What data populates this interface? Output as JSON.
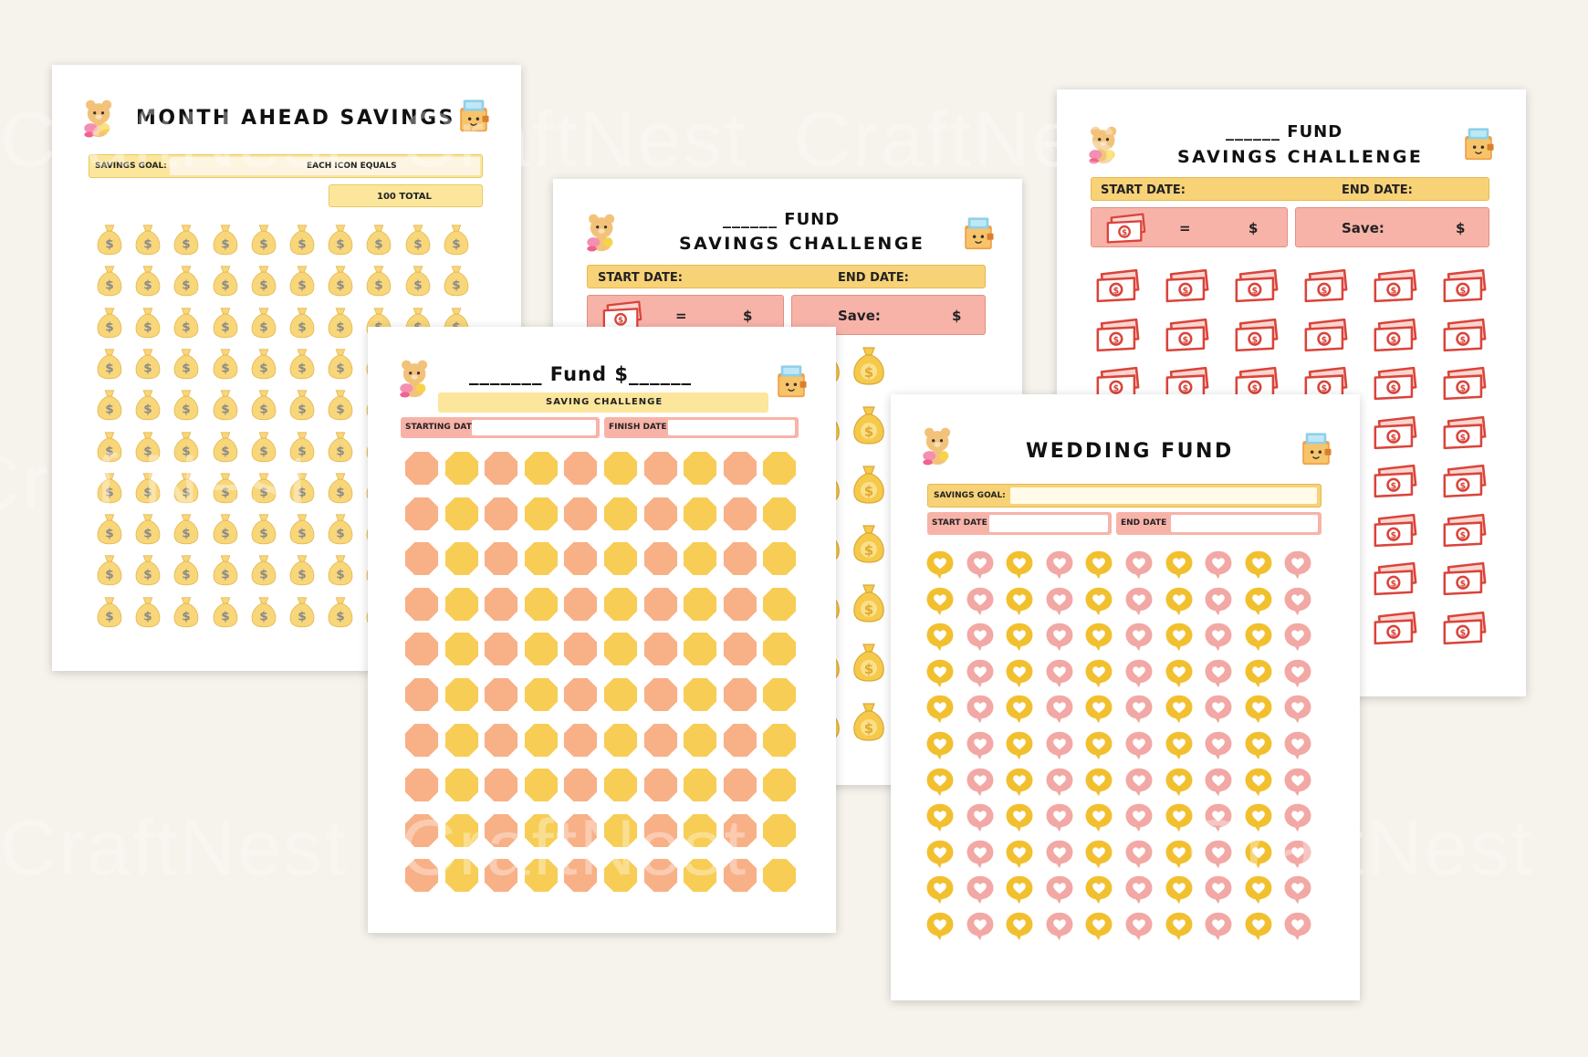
{
  "watermark": "CraftNest",
  "colors": {
    "background": "#f6f2ec",
    "yellow": "#f7cd55",
    "yellow_light": "#fbe69c",
    "bag": "#f8d67a",
    "peach": "#f8b087",
    "pink": "#f3a5a0",
    "bill_red": "#d9443a",
    "heart_yellow": "#f2c02f",
    "heart_pink": "#f2a8a4"
  },
  "page1": {
    "title": "MONTH AHEAD SAVINGS",
    "savings_goal_label": "SAVINGS GOAL:",
    "each_icon_label": "EACH ICON EQUALS",
    "total_label": "100 TOTAL",
    "icon": "money-bag-icon",
    "rows": 10,
    "cols": 10
  },
  "page2": {
    "title_line1": "______ FUND",
    "title_line2": "SAVINGS CHALLENGE",
    "start_label": "START DATE:",
    "end_label": "END DATE:",
    "equals": "=",
    "dollar": "$",
    "save_label": "Save:",
    "icon": "money-bag-icon"
  },
  "page3": {
    "title_line1": "______ FUND",
    "title_line2": "SAVINGS CHALLENGE",
    "start_label": "START DATE:",
    "end_label": "END DATE:",
    "equals": "=",
    "dollar": "$",
    "save_label": "Save:",
    "icon": "cash-bill-icon",
    "rows": 8,
    "cols": 6
  },
  "page4": {
    "title": "_______ Fund $______",
    "subtitle": "SAVING CHALLENGE",
    "start_label": "STARTING DATE",
    "finish_label": "FINISH DATE",
    "icon": "octagon-coin-icon",
    "rows": 10,
    "cols": 10
  },
  "page5": {
    "title": "WEDDING FUND",
    "savings_goal_label": "SAVINGS GOAL:",
    "start_label": "START DATE",
    "end_label": "END DATE",
    "icon": "heart-bubble-icon",
    "rows": 11,
    "cols": 10
  },
  "save_badge_text": "SAVE"
}
